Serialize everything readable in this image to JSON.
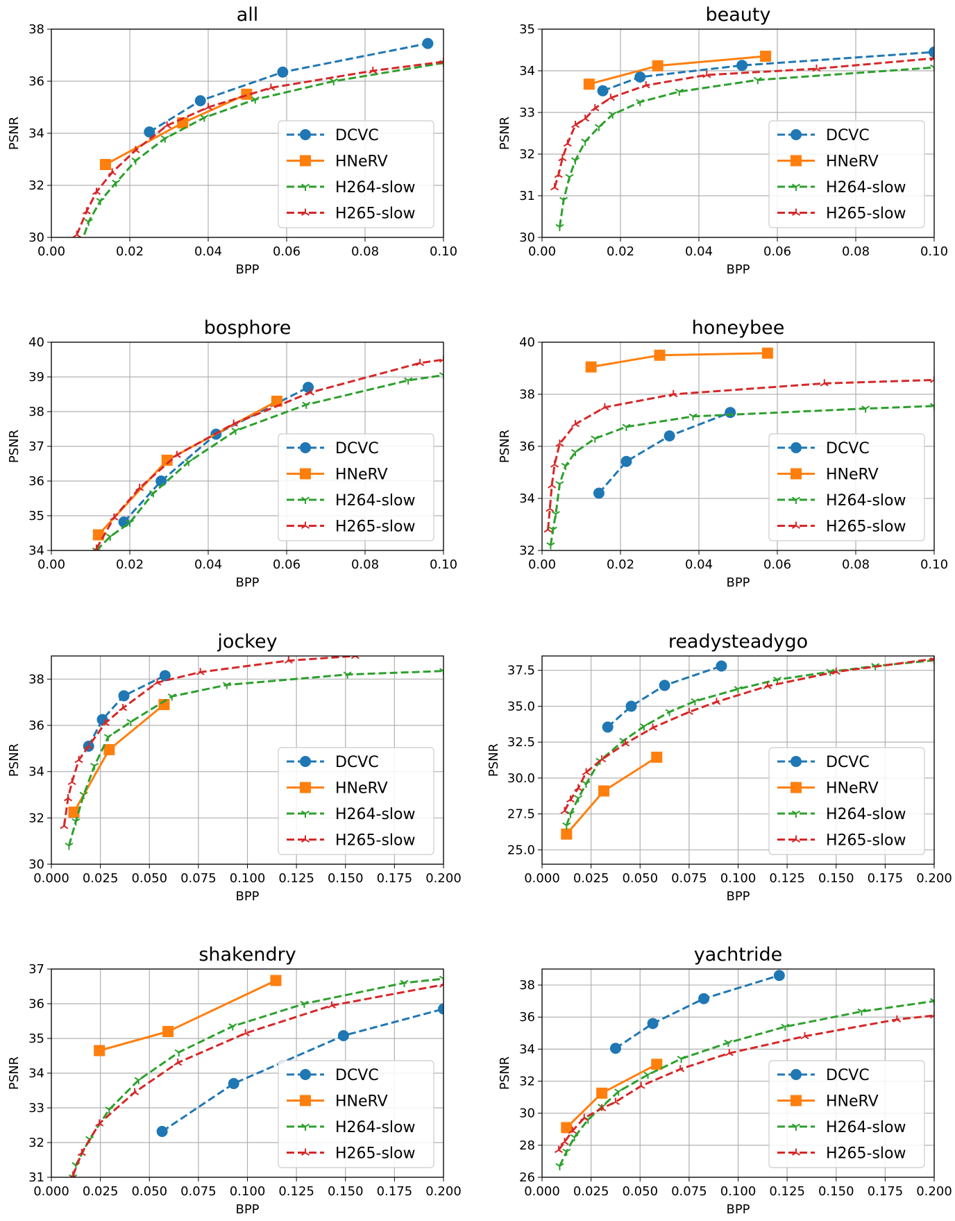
{
  "figure": {
    "layout": "4 rows x 2 columns"
  },
  "colors": {
    "DCVC": "#1f77b4",
    "HNeRV": "#ff7f0e",
    "H264-slow": "#2ca02c",
    "H265-slow": "#d62728"
  },
  "legend_labels": [
    "DCVC",
    "HNeRV",
    "H264-slow",
    "H265-slow"
  ],
  "chart_data": [
    {
      "type": "line",
      "title": "all",
      "xlabel": "BPP",
      "ylabel": "PSNR",
      "xlim": [
        0,
        0.1
      ],
      "ylim": [
        30,
        38
      ],
      "xticks": [
        "0.00",
        "0.02",
        "0.04",
        "0.06",
        "0.08",
        "0.10"
      ],
      "yticks": [
        "30",
        "32",
        "34",
        "36",
        "38"
      ],
      "legend": "lower right",
      "series": [
        {
          "name": "DCVC",
          "x": [
            0.025,
            0.038,
            0.059,
            0.096
          ],
          "y": [
            34.05,
            35.25,
            36.35,
            37.45
          ]
        },
        {
          "name": "HNeRV",
          "x": [
            0.0138,
            0.0335,
            0.0498
          ],
          "y": [
            32.8,
            34.4,
            35.5
          ]
        },
        {
          "name": "H264-slow",
          "x": [
            0.0075,
            0.0095,
            0.0125,
            0.0165,
            0.0215,
            0.029,
            0.039,
            0.052,
            0.072,
            0.1
          ],
          "y": [
            29.7,
            30.6,
            31.4,
            32.1,
            32.95,
            33.8,
            34.6,
            35.3,
            36.0,
            36.7
          ]
        },
        {
          "name": "H265-slow",
          "x": [
            0.0065,
            0.009,
            0.0115,
            0.0155,
            0.0215,
            0.0295,
            0.04,
            0.056,
            0.082,
            0.1
          ],
          "y": [
            30.1,
            31.0,
            31.75,
            32.5,
            33.35,
            34.3,
            35.0,
            35.75,
            36.4,
            36.75
          ]
        }
      ]
    },
    {
      "type": "line",
      "title": "beauty",
      "xlabel": "BPP",
      "ylabel": "PSNR",
      "xlim": [
        0,
        0.1
      ],
      "ylim": [
        30,
        35
      ],
      "xticks": [
        "0.00",
        "0.02",
        "0.04",
        "0.06",
        "0.08",
        "0.10"
      ],
      "yticks": [
        "30",
        "31",
        "32",
        "33",
        "34",
        "35"
      ],
      "legend": "lower right",
      "series": [
        {
          "name": "DCVC",
          "x": [
            0.0155,
            0.025,
            0.051,
            0.1
          ],
          "y": [
            33.52,
            33.85,
            34.13,
            34.45
          ]
        },
        {
          "name": "HNeRV",
          "x": [
            0.012,
            0.0295,
            0.057
          ],
          "y": [
            33.68,
            34.12,
            34.35
          ]
        },
        {
          "name": "H264-slow",
          "x": [
            0.0045,
            0.0055,
            0.007,
            0.0085,
            0.011,
            0.0145,
            0.018,
            0.025,
            0.035,
            0.055,
            0.1
          ],
          "y": [
            30.25,
            30.9,
            31.45,
            31.85,
            32.3,
            32.65,
            32.95,
            33.25,
            33.5,
            33.78,
            34.08
          ]
        },
        {
          "name": "H265-slow",
          "x": [
            0.0032,
            0.0042,
            0.0052,
            0.0065,
            0.0085,
            0.011,
            0.0135,
            0.0175,
            0.0265,
            0.042,
            0.07,
            0.1
          ],
          "y": [
            31.2,
            31.5,
            31.9,
            32.25,
            32.7,
            32.85,
            33.1,
            33.35,
            33.65,
            33.9,
            34.05,
            34.3
          ]
        }
      ]
    },
    {
      "type": "line",
      "title": "bosphore",
      "xlabel": "BPP",
      "ylabel": "PSNR",
      "xlim": [
        0,
        0.1
      ],
      "ylim": [
        34,
        40
      ],
      "xticks": [
        "0.00",
        "0.02",
        "0.04",
        "0.06",
        "0.08",
        "0.10"
      ],
      "yticks": [
        "34",
        "35",
        "36",
        "37",
        "38",
        "39",
        "40"
      ],
      "legend": "lower right",
      "series": [
        {
          "name": "DCVC",
          "x": [
            0.0185,
            0.028,
            0.042,
            0.0655
          ],
          "y": [
            34.82,
            36.0,
            37.35,
            38.7
          ]
        },
        {
          "name": "HNeRV",
          "x": [
            0.012,
            0.0295,
            0.0575
          ],
          "y": [
            34.45,
            36.6,
            38.3
          ]
        },
        {
          "name": "H264-slow",
          "x": [
            0.0115,
            0.015,
            0.02,
            0.026,
            0.035,
            0.047,
            0.065,
            0.091,
            0.1
          ],
          "y": [
            34.0,
            34.4,
            34.8,
            35.65,
            36.55,
            37.45,
            38.2,
            38.9,
            39.05
          ]
        },
        {
          "name": "H265-slow",
          "x": [
            0.0115,
            0.016,
            0.0225,
            0.032,
            0.0465,
            0.066,
            0.094,
            0.1
          ],
          "y": [
            34.05,
            34.95,
            35.8,
            36.75,
            37.65,
            38.55,
            39.4,
            39.5
          ]
        }
      ]
    },
    {
      "type": "line",
      "title": "honeybee",
      "xlabel": "BPP",
      "ylabel": "PSNR",
      "xlim": [
        0,
        0.1
      ],
      "ylim": [
        32,
        40
      ],
      "xticks": [
        "0.00",
        "0.02",
        "0.04",
        "0.06",
        "0.08",
        "0.10"
      ],
      "yticks": [
        "32",
        "34",
        "36",
        "38",
        "40"
      ],
      "legend": "lower right",
      "series": [
        {
          "name": "DCVC",
          "x": [
            0.0145,
            0.0215,
            0.0325,
            0.048
          ],
          "y": [
            34.2,
            35.42,
            36.4,
            37.3
          ]
        },
        {
          "name": "HNeRV",
          "x": [
            0.0125,
            0.03,
            0.0575
          ],
          "y": [
            39.05,
            39.5,
            39.58
          ]
        },
        {
          "name": "H264-slow",
          "x": [
            0.0022,
            0.0028,
            0.0035,
            0.0045,
            0.006,
            0.0085,
            0.0135,
            0.0215,
            0.0385,
            0.0825,
            0.1
          ],
          "y": [
            32.2,
            32.8,
            33.4,
            34.55,
            35.25,
            35.78,
            36.3,
            36.75,
            37.15,
            37.45,
            37.55
          ]
        },
        {
          "name": "H265-slow",
          "x": [
            0.0015,
            0.002,
            0.0025,
            0.0032,
            0.0045,
            0.0085,
            0.016,
            0.0335,
            0.072,
            0.1
          ],
          "y": [
            32.8,
            33.6,
            34.5,
            35.3,
            36.1,
            36.85,
            37.5,
            38.0,
            38.42,
            38.55
          ]
        }
      ]
    },
    {
      "type": "line",
      "title": "jockey",
      "xlabel": "BPP",
      "ylabel": "PSNR",
      "xlim": [
        0,
        0.2
      ],
      "ylim": [
        30,
        39
      ],
      "xticks": [
        "0.000",
        "0.025",
        "0.050",
        "0.075",
        "0.100",
        "0.125",
        "0.150",
        "0.175",
        "0.200"
      ],
      "yticks": [
        "30",
        "32",
        "34",
        "36",
        "38"
      ],
      "legend": "lower right",
      "series": [
        {
          "name": "DCVC",
          "x": [
            0.019,
            0.026,
            0.037,
            0.058
          ],
          "y": [
            35.1,
            36.25,
            37.28,
            38.15
          ]
        },
        {
          "name": "HNeRV",
          "x": [
            0.0115,
            0.0295,
            0.0575
          ],
          "y": [
            32.25,
            34.95,
            36.9
          ]
        },
        {
          "name": "H264-slow",
          "x": [
            0.009,
            0.0125,
            0.0165,
            0.022,
            0.029,
            0.0405,
            0.0615,
            0.0895,
            0.151,
            0.2
          ],
          "y": [
            30.8,
            31.85,
            33.0,
            34.25,
            35.5,
            36.15,
            37.25,
            37.75,
            38.2,
            38.35
          ]
        },
        {
          "name": "H265-slow",
          "x": [
            0.0065,
            0.0085,
            0.0105,
            0.014,
            0.019,
            0.0275,
            0.0365,
            0.054,
            0.076,
            0.121,
            0.155
          ],
          "y": [
            31.65,
            32.85,
            33.55,
            34.5,
            35.1,
            36.1,
            36.75,
            37.85,
            38.3,
            38.8,
            39.0
          ]
        }
      ]
    },
    {
      "type": "line",
      "title": "readysteadygo",
      "xlabel": "BPP",
      "ylabel": "PSNR",
      "xlim": [
        0,
        0.2
      ],
      "ylim": [
        24,
        38.5
      ],
      "xticks": [
        "0.000",
        "0.025",
        "0.050",
        "0.075",
        "0.100",
        "0.125",
        "0.150",
        "0.175",
        "0.200"
      ],
      "yticks": [
        "25.0",
        "27.5",
        "30.0",
        "32.5",
        "35.0",
        "37.5"
      ],
      "legend": "lower right",
      "series": [
        {
          "name": "DCVC",
          "x": [
            0.0335,
            0.0455,
            0.0625,
            0.0915
          ],
          "y": [
            33.55,
            35.0,
            36.45,
            37.8
          ]
        },
        {
          "name": "HNeRV",
          "x": [
            0.0125,
            0.0315,
            0.0585
          ],
          "y": [
            26.1,
            29.1,
            31.45
          ]
        },
        {
          "name": "H264-slow",
          "x": [
            0.0125,
            0.0145,
            0.0185,
            0.0225,
            0.0295,
            0.0415,
            0.052,
            0.065,
            0.078,
            0.1,
            0.12,
            0.147,
            0.17,
            0.2
          ],
          "y": [
            26.7,
            27.5,
            28.6,
            29.6,
            31.2,
            32.6,
            33.6,
            34.6,
            35.35,
            36.2,
            36.85,
            37.4,
            37.8,
            38.2
          ]
        },
        {
          "name": "H265-slow",
          "x": [
            0.0115,
            0.0145,
            0.0185,
            0.0225,
            0.0305,
            0.0425,
            0.0565,
            0.075,
            0.089,
            0.115,
            0.15,
            0.2
          ],
          "y": [
            27.7,
            28.5,
            29.3,
            30.4,
            31.3,
            32.4,
            33.5,
            34.6,
            35.3,
            36.4,
            37.4,
            38.3
          ]
        }
      ]
    },
    {
      "type": "line",
      "title": "shakendry",
      "xlabel": "BPP",
      "ylabel": "PSNR",
      "xlim": [
        0,
        0.2
      ],
      "ylim": [
        31,
        37
      ],
      "xticks": [
        "0.000",
        "0.025",
        "0.050",
        "0.075",
        "0.100",
        "0.125",
        "0.150",
        "0.175",
        "0.200"
      ],
      "yticks": [
        "31",
        "32",
        "33",
        "34",
        "35",
        "36",
        "37"
      ],
      "legend": "lower right",
      "series": [
        {
          "name": "DCVC",
          "x": [
            0.0565,
            0.093,
            0.149,
            0.2
          ],
          "y": [
            32.32,
            33.7,
            35.08,
            35.85
          ]
        },
        {
          "name": "HNeRV",
          "x": [
            0.0245,
            0.0595,
            0.1145
          ],
          "y": [
            34.65,
            35.2,
            36.67
          ]
        },
        {
          "name": "H264-slow",
          "x": [
            0.011,
            0.0125,
            0.0195,
            0.0295,
            0.0445,
            0.065,
            0.0925,
            0.129,
            0.18,
            0.2
          ],
          "y": [
            31.0,
            31.35,
            32.1,
            32.95,
            33.8,
            34.6,
            35.35,
            36.0,
            36.6,
            36.72
          ]
        },
        {
          "name": "H265-slow",
          "x": [
            0.011,
            0.0155,
            0.0245,
            0.0425,
            0.0645,
            0.099,
            0.143,
            0.2
          ],
          "y": [
            31.05,
            31.7,
            32.55,
            33.45,
            34.3,
            35.15,
            35.95,
            36.55
          ]
        }
      ]
    },
    {
      "type": "line",
      "title": "yachtride",
      "xlabel": "BPP",
      "ylabel": "PSNR",
      "xlim": [
        0,
        0.2
      ],
      "ylim": [
        26,
        39
      ],
      "xticks": [
        "0.000",
        "0.025",
        "0.050",
        "0.075",
        "0.100",
        "0.125",
        "0.150",
        "0.175",
        "0.200"
      ],
      "yticks": [
        "26",
        "28",
        "30",
        "32",
        "34",
        "36",
        "38"
      ],
      "legend": "lower right",
      "series": [
        {
          "name": "DCVC",
          "x": [
            0.0375,
            0.0565,
            0.0825,
            0.121
          ],
          "y": [
            34.05,
            35.6,
            37.15,
            38.6
          ]
        },
        {
          "name": "HNeRV",
          "x": [
            0.0125,
            0.0305,
            0.0585
          ],
          "y": [
            29.1,
            31.25,
            33.05
          ]
        },
        {
          "name": "H264-slow",
          "x": [
            0.009,
            0.0125,
            0.0165,
            0.0235,
            0.0305,
            0.039,
            0.054,
            0.071,
            0.095,
            0.124,
            0.163,
            0.2
          ],
          "y": [
            26.7,
            27.6,
            28.5,
            29.6,
            30.4,
            31.35,
            32.4,
            33.4,
            34.4,
            35.4,
            36.35,
            37.0
          ]
        },
        {
          "name": "H265-slow",
          "x": [
            0.0085,
            0.0115,
            0.0155,
            0.0215,
            0.0305,
            0.0375,
            0.0505,
            0.0705,
            0.0955,
            0.134,
            0.181,
            0.2
          ],
          "y": [
            27.7,
            28.2,
            28.9,
            29.7,
            30.3,
            30.7,
            31.7,
            32.75,
            33.75,
            34.8,
            35.85,
            36.1
          ]
        }
      ]
    }
  ]
}
